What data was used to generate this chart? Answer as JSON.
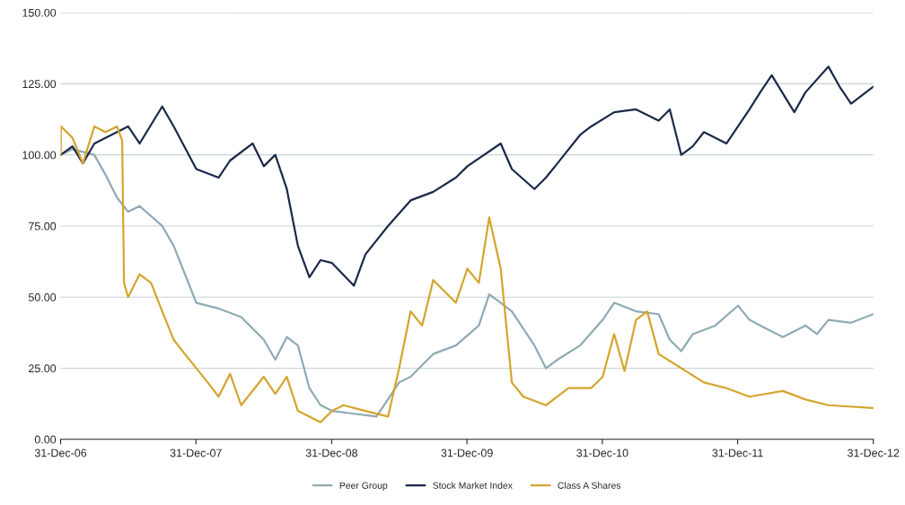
{
  "chart_data": {
    "type": "line",
    "xlim": [
      "2006-12-31",
      "2012-12-31"
    ],
    "xticks": [
      {
        "value": "2006-12-31",
        "label": "31-Dec-06"
      },
      {
        "value": "2007-12-31",
        "label": "31-Dec-07"
      },
      {
        "value": "2008-12-31",
        "label": "31-Dec-08"
      },
      {
        "value": "2009-12-31",
        "label": "31-Dec-09"
      },
      {
        "value": "2010-12-31",
        "label": "31-Dec-10"
      },
      {
        "value": "2011-12-31",
        "label": "31-Dec-11"
      },
      {
        "value": "2012-12-31",
        "label": "31-Dec-12"
      }
    ],
    "ylim": [
      0,
      150
    ],
    "yticks": [
      {
        "value": 0,
        "label": "0.00"
      },
      {
        "value": 25,
        "label": "25.00"
      },
      {
        "value": 50,
        "label": "50.00"
      },
      {
        "value": 75,
        "label": "75.00"
      },
      {
        "value": 100,
        "label": "100.00"
      },
      {
        "value": 125,
        "label": "125.00"
      },
      {
        "value": 150,
        "label": "150.00"
      }
    ],
    "grid": "y",
    "legend": "bottom",
    "marker": "none",
    "line_style": "solid",
    "series": [
      {
        "name": "Peer Group",
        "color": "#8faab5",
        "x": [
          "2006-12-31",
          "2007-02",
          "2007-04",
          "2007-05",
          "2007-06",
          "2007-07",
          "2007-08",
          "2007-10",
          "2007-11",
          "2008-01",
          "2008-03",
          "2008-05",
          "2008-07",
          "2008-08",
          "2008-09",
          "2008-10",
          "2008-11",
          "2008-12",
          "2009-01",
          "2009-03",
          "2009-05",
          "2009-07",
          "2009-08",
          "2009-10",
          "2009-12",
          "2010-02",
          "2010-03",
          "2010-04",
          "2010-05",
          "2010-07",
          "2010-08",
          "2010-09",
          "2010-11",
          "2011-01",
          "2011-02",
          "2011-04",
          "2011-06",
          "2011-07",
          "2011-08",
          "2011-09",
          "2011-11",
          "2012-01",
          "2012-02",
          "2012-03",
          "2012-05",
          "2012-07",
          "2012-08",
          "2012-09",
          "2012-11",
          "2012-12-31"
        ],
        "values": [
          100,
          102,
          100,
          93,
          85,
          80,
          82,
          75,
          68,
          48,
          46,
          43,
          35,
          28,
          36,
          33,
          18,
          12,
          10,
          9,
          8,
          20,
          22,
          30,
          33,
          40,
          51,
          48,
          45,
          33,
          25,
          28,
          33,
          42,
          48,
          45,
          44,
          35,
          31,
          37,
          40,
          47,
          42,
          40,
          36,
          40,
          37,
          42,
          41,
          44
        ]
      },
      {
        "name": "Stock Market Index",
        "color": "#1b2a4a",
        "x": [
          "2006-12-31",
          "2007-02",
          "2007-03",
          "2007-04",
          "2007-06",
          "2007-07",
          "2007-08",
          "2007-10",
          "2007-11",
          "2008-01",
          "2008-03",
          "2008-04",
          "2008-06",
          "2008-07",
          "2008-08",
          "2008-09",
          "2008-10",
          "2008-11",
          "2008-12",
          "2009-01",
          "2009-03",
          "2009-04",
          "2009-06",
          "2009-08",
          "2009-10",
          "2009-12",
          "2010-01",
          "2010-04",
          "2010-05",
          "2010-07",
          "2010-08",
          "2010-09",
          "2010-11",
          "2010-12",
          "2011-02",
          "2011-04",
          "2011-06",
          "2011-07",
          "2011-08",
          "2011-09",
          "2011-10",
          "2011-12",
          "2012-02",
          "2012-03",
          "2012-04",
          "2012-06",
          "2012-07",
          "2012-09",
          "2012-10",
          "2012-11",
          "2012-12-31"
        ],
        "values": [
          100,
          103,
          97,
          104,
          108,
          110,
          104,
          117,
          110,
          95,
          92,
          98,
          104,
          96,
          100,
          88,
          68,
          57,
          63,
          62,
          54,
          65,
          75,
          84,
          87,
          92,
          96,
          104,
          95,
          88,
          92,
          97,
          107,
          110,
          115,
          116,
          112,
          116,
          100,
          103,
          108,
          104,
          116,
          122,
          128,
          115,
          122,
          131,
          124,
          118,
          124
        ]
      },
      {
        "name": "Class A Shares",
        "color": "#d4a52f",
        "x": [
          "2006-12-31",
          "2007-01",
          "2007-02",
          "2007-03",
          "2007-04",
          "2007-05",
          "2007-06",
          "2007-06-15",
          "2007-06-20",
          "2007-07",
          "2007-08",
          "2007-09",
          "2007-10",
          "2007-11",
          "2007-12",
          "2008-02",
          "2008-03",
          "2008-04",
          "2008-05",
          "2008-07",
          "2008-08",
          "2008-09",
          "2008-10",
          "2008-12",
          "2009-01",
          "2009-02",
          "2009-04",
          "2009-06",
          "2009-07",
          "2009-08",
          "2009-09",
          "2009-10",
          "2009-12",
          "2010-01",
          "2010-02",
          "2010-03",
          "2010-04",
          "2010-05",
          "2010-06",
          "2010-08",
          "2010-10",
          "2010-12",
          "2011-01",
          "2011-02",
          "2011-03",
          "2011-04",
          "2011-05",
          "2011-06",
          "2011-08",
          "2011-10",
          "2011-12",
          "2012-02",
          "2012-05",
          "2012-07",
          "2012-09",
          "2012-12-31"
        ],
        "values": [
          100,
          110,
          106,
          97,
          110,
          108,
          110,
          105,
          55,
          50,
          58,
          55,
          45,
          35,
          30,
          20,
          15,
          23,
          12,
          22,
          16,
          22,
          10,
          6,
          10,
          12,
          10,
          8,
          25,
          45,
          40,
          56,
          48,
          60,
          55,
          78,
          60,
          20,
          15,
          12,
          18,
          18,
          22,
          37,
          24,
          42,
          45,
          30,
          25,
          20,
          18,
          15,
          17,
          14,
          12,
          11
        ]
      }
    ]
  }
}
